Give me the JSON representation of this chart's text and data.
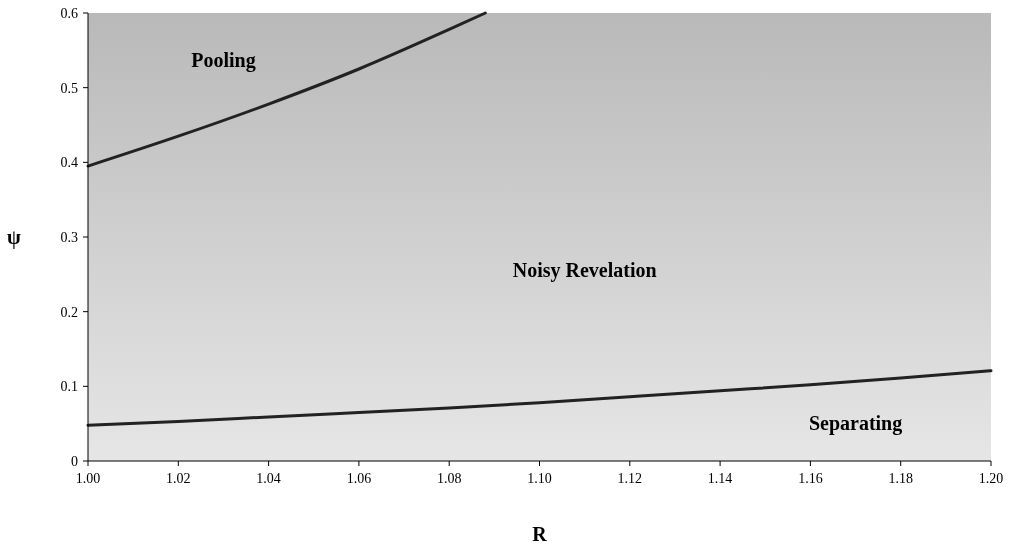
{
  "chart_data": {
    "type": "line",
    "xlabel": "R",
    "ylabel": "ψ",
    "xlim": [
      1.0,
      1.2
    ],
    "ylim": [
      0,
      0.6
    ],
    "xticks": [
      {
        "value": 1.0,
        "label": "1.00"
      },
      {
        "value": 1.02,
        "label": "1.02"
      },
      {
        "value": 1.04,
        "label": "1.04"
      },
      {
        "value": 1.06,
        "label": "1.06"
      },
      {
        "value": 1.08,
        "label": "1.08"
      },
      {
        "value": 1.1,
        "label": "1.10"
      },
      {
        "value": 1.12,
        "label": "1.12"
      },
      {
        "value": 1.14,
        "label": "1.14"
      },
      {
        "value": 1.16,
        "label": "1.16"
      },
      {
        "value": 1.18,
        "label": "1.18"
      },
      {
        "value": 1.2,
        "label": "1.20"
      }
    ],
    "yticks": [
      0,
      0.1,
      0.2,
      0.3,
      0.4,
      0.5,
      0.6
    ],
    "grid": false,
    "marker": "none",
    "line_style": "solid",
    "series": [
      {
        "color": "#222222",
        "x": [
          1.0,
          1.02,
          1.04,
          1.06,
          1.08,
          1.088
        ],
        "values": [
          0.395,
          0.435,
          0.478,
          0.525,
          0.578,
          0.6
        ]
      },
      {
        "color": "#222222",
        "x": [
          1.0,
          1.02,
          1.04,
          1.06,
          1.08,
          1.1,
          1.12,
          1.14,
          1.16,
          1.18,
          1.2
        ],
        "values": [
          0.048,
          0.053,
          0.059,
          0.065,
          0.071,
          0.078,
          0.086,
          0.094,
          0.102,
          0.111,
          0.121
        ]
      }
    ],
    "annotations": [
      "Pooling",
      "Noisy Revelation",
      "Separating"
    ]
  }
}
